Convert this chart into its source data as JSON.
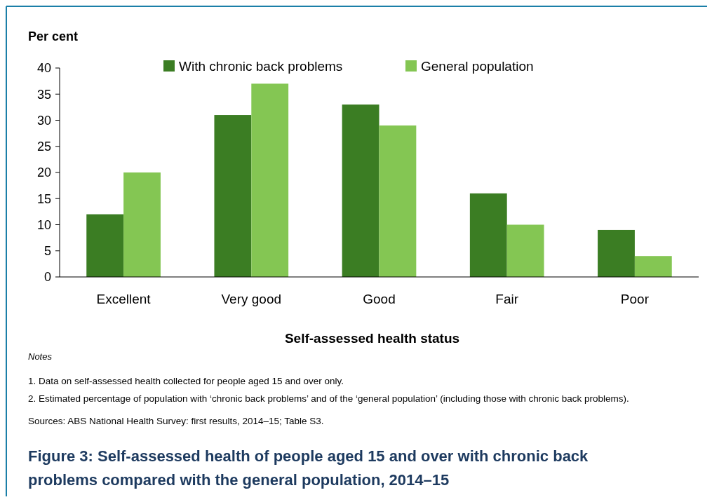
{
  "chart_data": {
    "type": "bar",
    "title": "Figure 3: Self-assessed health of people aged 15 and over with chronic back problems compared with the general population, 2014–15",
    "xlabel": "Self-assessed health status",
    "ylabel": "Per cent",
    "categories": [
      "Excellent",
      "Very good",
      "Good",
      "Fair",
      "Poor"
    ],
    "series": [
      {
        "name": "With chronic back problems",
        "color": "#3b7d23",
        "values": [
          12,
          31,
          33,
          16,
          9
        ]
      },
      {
        "name": "General population",
        "color": "#84c653",
        "values": [
          20,
          37,
          29,
          10,
          4
        ]
      }
    ],
    "ylim": [
      0,
      40
    ],
    "yticks": [
      0,
      5,
      10,
      15,
      20,
      25,
      30,
      35,
      40
    ],
    "grid": false,
    "legend": "top",
    "annotations": [
      "Notes",
      "1. Data on self-assessed health collected for people aged 15 and over only.",
      "2. Estimated percentage of population with ‘chronic back problems’ and of the ‘general population’ (including those with chronic back problems).",
      "Sources: ABS National Health Survey: first results, 2014–15; Table S3."
    ]
  }
}
